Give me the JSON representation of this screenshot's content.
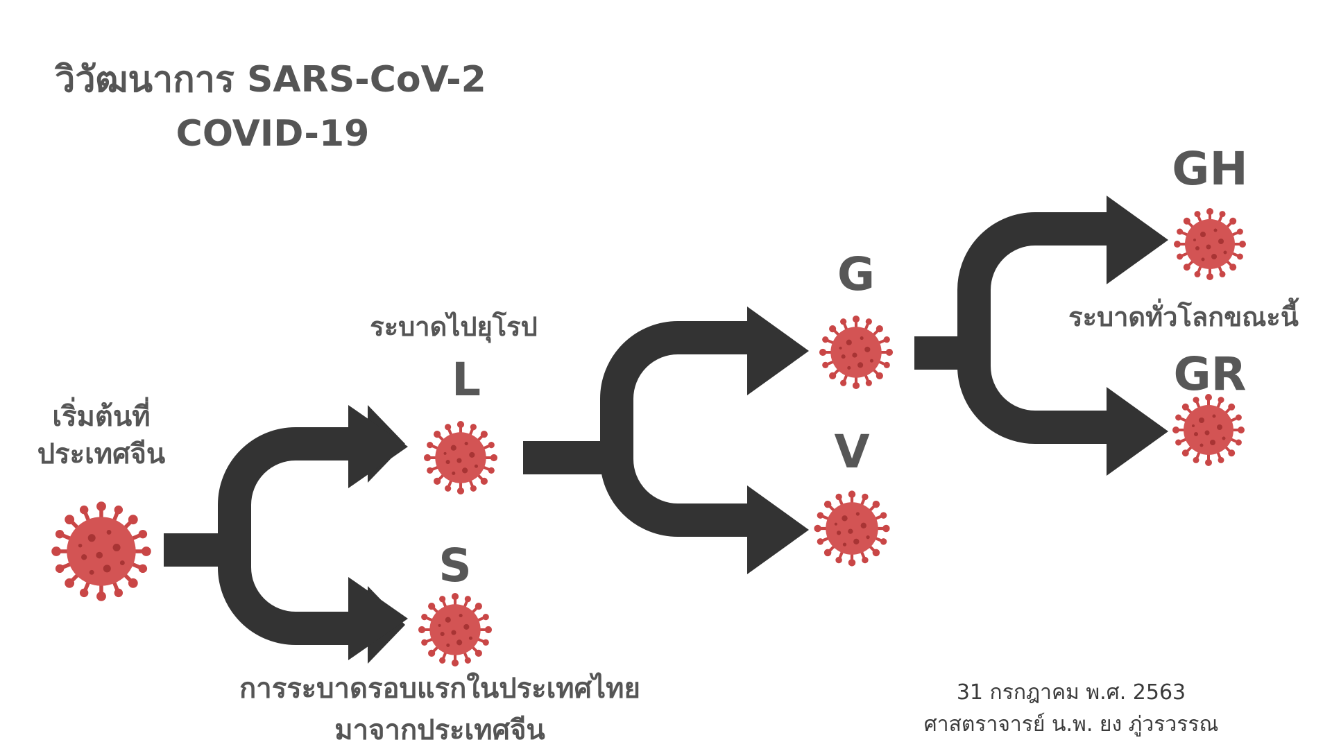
{
  "title": {
    "line1": "วิวัฒนาการ SARS-CoV-2",
    "line2": "COVID-19"
  },
  "captions": {
    "origin_line1": "เริ่มต้นที่",
    "origin_line2": "ประเทศจีน",
    "europe": "ระบาดไปยุโรป",
    "thailand_line1": "การระบาดรอบแรกในประเทศไทย",
    "thailand_line2": "มาจากประเทศจีน",
    "global": "ระบาดทั่วโลกขณะนี้"
  },
  "variants": {
    "L": "L",
    "S": "S",
    "G": "G",
    "V": "V",
    "GH": "GH",
    "GR": "GR"
  },
  "credit": {
    "date": "31 กรกฎาคม พ.ศ. 2563",
    "author": "ศาสตราจารย์ น.พ. ยง ภู่วรวรรณ"
  },
  "colors": {
    "arrow": "#333333",
    "virus_body": "#d35454",
    "virus_outline": "#c94646",
    "virus_spots": "#a83434",
    "text": "#555555"
  },
  "icons": {
    "virus": "coronavirus-icon",
    "arrow": "fork-arrow-icon"
  }
}
